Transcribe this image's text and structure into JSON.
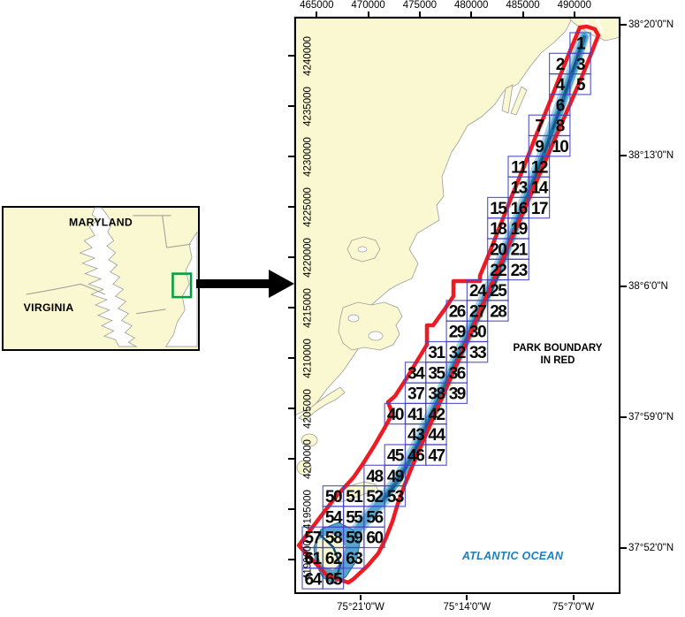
{
  "map": {
    "axes": {
      "top": {
        "labels": [
          "465000",
          "470000",
          "475000",
          "480000",
          "485000",
          "490000"
        ]
      },
      "left": {
        "labels": [
          "4240000",
          "4235000",
          "4230000",
          "4225000",
          "4220000",
          "4215000",
          "4210000",
          "4205000",
          "4200000",
          "4195000",
          "4190000"
        ]
      },
      "right": {
        "labels": [
          "38°20'0\"N",
          "38°13'0\"N",
          "38°6'0\"N",
          "37°59'0\"N",
          "37°52'0\"N"
        ]
      },
      "bottom": {
        "labels": [
          "75°21'0\"W",
          "75°14'0\"W",
          "75°7'0\"W"
        ]
      }
    },
    "park_note_line1": "PARK BOUNDARY",
    "park_note_line2": "IN RED",
    "ocean_label": "ATLANTIC OCEAN",
    "cells": [
      {
        "n": 1,
        "c": 13,
        "r": 0
      },
      {
        "n": 2,
        "c": 12,
        "r": 1
      },
      {
        "n": 3,
        "c": 13,
        "r": 1
      },
      {
        "n": 4,
        "c": 12,
        "r": 2
      },
      {
        "n": 5,
        "c": 13,
        "r": 2
      },
      {
        "n": 6,
        "c": 12,
        "r": 3
      },
      {
        "n": 7,
        "c": 11,
        "r": 4
      },
      {
        "n": 8,
        "c": 12,
        "r": 4
      },
      {
        "n": 9,
        "c": 11,
        "r": 5
      },
      {
        "n": 10,
        "c": 12,
        "r": 5
      },
      {
        "n": 11,
        "c": 10,
        "r": 6
      },
      {
        "n": 12,
        "c": 11,
        "r": 6
      },
      {
        "n": 13,
        "c": 10,
        "r": 7
      },
      {
        "n": 14,
        "c": 11,
        "r": 7
      },
      {
        "n": 15,
        "c": 9,
        "r": 8
      },
      {
        "n": 16,
        "c": 10,
        "r": 8
      },
      {
        "n": 17,
        "c": 11,
        "r": 8
      },
      {
        "n": 18,
        "c": 9,
        "r": 9
      },
      {
        "n": 19,
        "c": 10,
        "r": 9
      },
      {
        "n": 20,
        "c": 9,
        "r": 10
      },
      {
        "n": 21,
        "c": 10,
        "r": 10
      },
      {
        "n": 22,
        "c": 9,
        "r": 11
      },
      {
        "n": 23,
        "c": 10,
        "r": 11
      },
      {
        "n": 24,
        "c": 8,
        "r": 12
      },
      {
        "n": 25,
        "c": 9,
        "r": 12
      },
      {
        "n": 26,
        "c": 7,
        "r": 13
      },
      {
        "n": 27,
        "c": 8,
        "r": 13
      },
      {
        "n": 28,
        "c": 9,
        "r": 13
      },
      {
        "n": 29,
        "c": 7,
        "r": 14
      },
      {
        "n": 30,
        "c": 8,
        "r": 14
      },
      {
        "n": 31,
        "c": 6,
        "r": 15
      },
      {
        "n": 32,
        "c": 7,
        "r": 15
      },
      {
        "n": 33,
        "c": 8,
        "r": 15
      },
      {
        "n": 34,
        "c": 5,
        "r": 16
      },
      {
        "n": 35,
        "c": 6,
        "r": 16
      },
      {
        "n": 36,
        "c": 7,
        "r": 16
      },
      {
        "n": 37,
        "c": 5,
        "r": 17
      },
      {
        "n": 38,
        "c": 6,
        "r": 17
      },
      {
        "n": 39,
        "c": 7,
        "r": 17
      },
      {
        "n": 40,
        "c": 4,
        "r": 18
      },
      {
        "n": 41,
        "c": 5,
        "r": 18
      },
      {
        "n": 42,
        "c": 6,
        "r": 18
      },
      {
        "n": 43,
        "c": 5,
        "r": 19
      },
      {
        "n": 44,
        "c": 6,
        "r": 19
      },
      {
        "n": 45,
        "c": 4,
        "r": 20
      },
      {
        "n": 46,
        "c": 5,
        "r": 20
      },
      {
        "n": 47,
        "c": 6,
        "r": 20
      },
      {
        "n": 48,
        "c": 3,
        "r": 21
      },
      {
        "n": 49,
        "c": 4,
        "r": 21
      },
      {
        "n": 50,
        "c": 1,
        "r": 22
      },
      {
        "n": 51,
        "c": 2,
        "r": 22
      },
      {
        "n": 52,
        "c": 3,
        "r": 22
      },
      {
        "n": 53,
        "c": 4,
        "r": 22
      },
      {
        "n": 54,
        "c": 1,
        "r": 23
      },
      {
        "n": 55,
        "c": 2,
        "r": 23
      },
      {
        "n": 56,
        "c": 3,
        "r": 23
      },
      {
        "n": 57,
        "c": 0,
        "r": 24
      },
      {
        "n": 58,
        "c": 1,
        "r": 24
      },
      {
        "n": 59,
        "c": 2,
        "r": 24
      },
      {
        "n": 60,
        "c": 3,
        "r": 24
      },
      {
        "n": 61,
        "c": 0,
        "r": 25
      },
      {
        "n": 62,
        "c": 1,
        "r": 25
      },
      {
        "n": 63,
        "c": 2,
        "r": 25
      },
      {
        "n": 64,
        "c": 0,
        "r": 26
      },
      {
        "n": 65,
        "c": 1,
        "r": 26
      }
    ]
  },
  "inset": {
    "maryland": "MARYLAND",
    "virginia": "VIRGINIA"
  },
  "colors": {
    "land": "#FAF8D0",
    "water": "#FFFFFF",
    "shoreline_gray": "#9C9C9C",
    "park_boundary_red": "#ED1C24",
    "grid_cell_blue": "#4343BF",
    "bathy_light": "#A6D3E6",
    "bathy_mid": "#56A5D0",
    "bathy_dark": "#1D6FA3",
    "bathy_navy": "#13527C",
    "ocean_label_blue": "#1B7FBE",
    "study_area_green": "#00A03C"
  }
}
